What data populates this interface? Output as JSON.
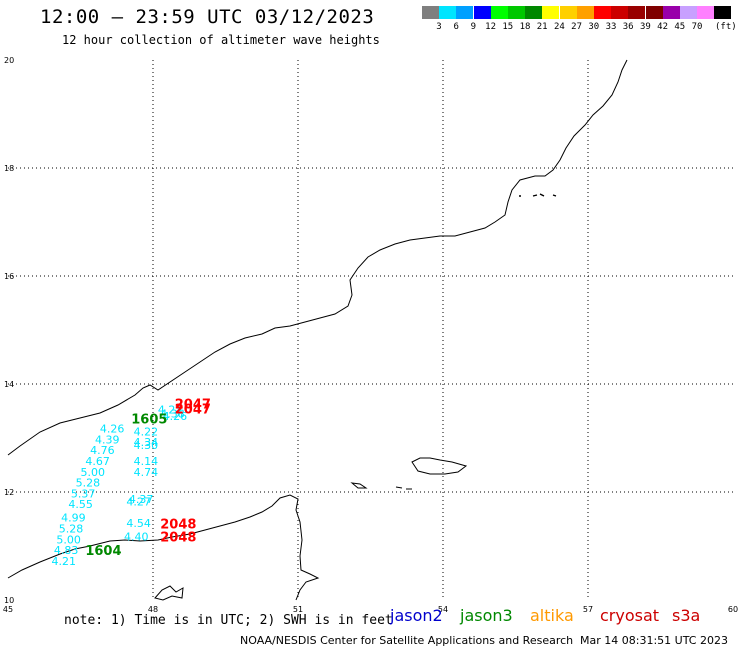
{
  "header": {
    "title": "12:00 — 23:59 UTC 03/12/2023",
    "subtitle": "12 hour collection of altimeter wave heights"
  },
  "color_scale": {
    "colors": [
      "#7f7f7f",
      "#00e5ff",
      "#00a0ff",
      "#0000ff",
      "#00ff00",
      "#00c800",
      "#008800",
      "#ffff00",
      "#ffd000",
      "#ffa000",
      "#ff0000",
      "#cc0000",
      "#990000",
      "#7f0000",
      "#9900aa",
      "#c8a0ff",
      "#ff80ff",
      "#000000"
    ],
    "labels": [
      "3",
      "6",
      "9",
      "12",
      "15",
      "18",
      "21",
      "24",
      "27",
      "30",
      "33",
      "36",
      "39",
      "42",
      "45",
      "70"
    ],
    "unit": "(ft)"
  },
  "axes": {
    "lon_labels": [
      "45",
      "48",
      "51",
      "54",
      "57",
      "60"
    ],
    "lat_labels": [
      "20",
      "18",
      "16",
      "14",
      "12",
      "10"
    ],
    "lon_range": [
      45,
      60
    ],
    "lat_range": [
      10,
      20
    ],
    "grid": true
  },
  "measurements": [
    {
      "text": "4.23",
      "lon": 48.1,
      "lat": 13.45,
      "color": "#00e5ff"
    },
    {
      "text": "4.26",
      "lon": 48.2,
      "lat": 13.33,
      "color": "#00e5ff"
    },
    {
      "text": "4.38",
      "lon": 48.15,
      "lat": 13.38,
      "color": "#00e5ff"
    },
    {
      "text": "4.26",
      "lon": 46.9,
      "lat": 13.1,
      "color": "#00e5ff"
    },
    {
      "text": "4.39",
      "lon": 46.8,
      "lat": 12.9,
      "color": "#00e5ff"
    },
    {
      "text": "4.76",
      "lon": 46.7,
      "lat": 12.7,
      "color": "#00e5ff"
    },
    {
      "text": "4.67",
      "lon": 46.6,
      "lat": 12.5,
      "color": "#00e5ff"
    },
    {
      "text": "5.00",
      "lon": 46.5,
      "lat": 12.3,
      "color": "#00e5ff"
    },
    {
      "text": "5.28",
      "lon": 46.4,
      "lat": 12.1,
      "color": "#00e5ff"
    },
    {
      "text": "5.37",
      "lon": 46.3,
      "lat": 11.9,
      "color": "#00e5ff"
    },
    {
      "text": "4.55",
      "lon": 46.25,
      "lat": 11.7,
      "color": "#00e5ff"
    },
    {
      "text": "4.99",
      "lon": 46.1,
      "lat": 11.45,
      "color": "#00e5ff"
    },
    {
      "text": "5.28",
      "lon": 46.05,
      "lat": 11.25,
      "color": "#00e5ff"
    },
    {
      "text": "5.00",
      "lon": 46.0,
      "lat": 11.05,
      "color": "#00e5ff"
    },
    {
      "text": "4.83",
      "lon": 45.95,
      "lat": 10.85,
      "color": "#00e5ff"
    },
    {
      "text": "4.21",
      "lon": 45.9,
      "lat": 10.65,
      "color": "#00e5ff"
    },
    {
      "text": "4.22",
      "lon": 47.6,
      "lat": 13.05,
      "color": "#00e5ff"
    },
    {
      "text": "4.34",
      "lon": 47.6,
      "lat": 12.85,
      "color": "#00e5ff"
    },
    {
      "text": "4.30",
      "lon": 47.6,
      "lat": 12.8,
      "color": "#00e5ff"
    },
    {
      "text": "4.14",
      "lon": 47.6,
      "lat": 12.5,
      "color": "#00e5ff"
    },
    {
      "text": "4.74",
      "lon": 47.6,
      "lat": 12.3,
      "color": "#00e5ff"
    },
    {
      "text": "4.37",
      "lon": 47.5,
      "lat": 11.8,
      "color": "#00e5ff"
    },
    {
      "text": "4.27",
      "lon": 47.45,
      "lat": 11.75,
      "color": "#00e5ff"
    },
    {
      "text": "4.54",
      "lon": 47.45,
      "lat": 11.35,
      "color": "#00e5ff"
    },
    {
      "text": "4.40",
      "lon": 47.4,
      "lat": 11.1,
      "color": "#00e5ff"
    }
  ],
  "pass_labels": [
    {
      "text": "2047",
      "lon": 48.45,
      "lat": 13.55,
      "color": "#ff0000"
    },
    {
      "text": "2047",
      "lon": 48.45,
      "lat": 13.45,
      "color": "#ff0000"
    },
    {
      "text": "1605",
      "lon": 47.55,
      "lat": 13.27,
      "color": "#008800"
    },
    {
      "text": "2048",
      "lon": 48.15,
      "lat": 11.32,
      "color": "#ff0000"
    },
    {
      "text": "2048",
      "lon": 48.15,
      "lat": 11.08,
      "color": "#ff0000"
    },
    {
      "text": "1604",
      "lon": 46.6,
      "lat": 10.83,
      "color": "#008800"
    }
  ],
  "footer": {
    "note": "note: 1) Time is in UTC; 2) SWH is in feet",
    "satellites": [
      {
        "name": "jason2",
        "color": "#0000cc"
      },
      {
        "name": "jason3",
        "color": "#008800"
      },
      {
        "name": "altika",
        "color": "#ff9900"
      },
      {
        "name": "cryosat",
        "color": "#cc0000"
      },
      {
        "name": "s3a",
        "color": "#cc0000"
      }
    ],
    "credit": "NOAA/NESDIS Center for Satellite Applications and Research",
    "timestamp": "Mar 14 08:31:51 UTC 2023"
  }
}
